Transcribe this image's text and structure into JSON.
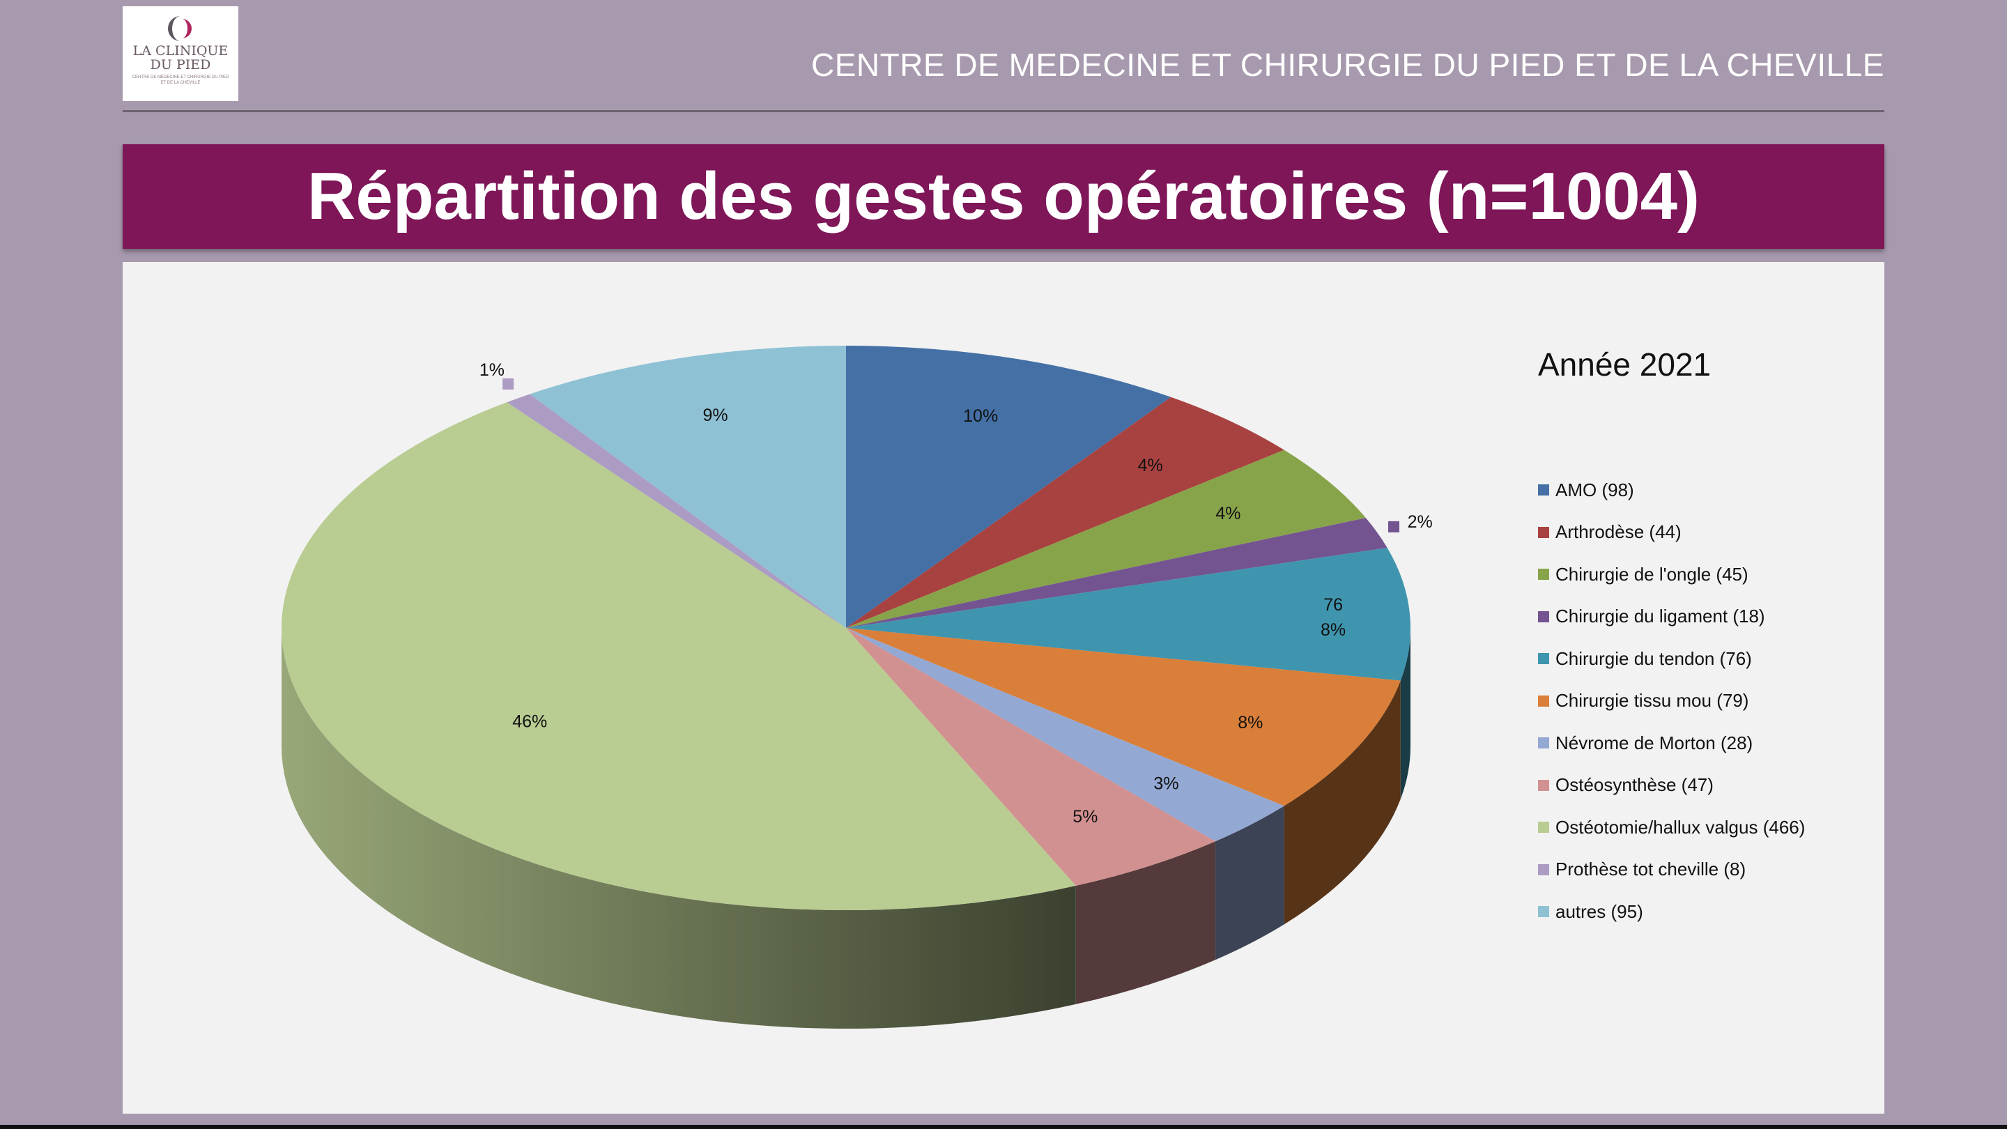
{
  "header": {
    "logo_line1": "LA CLINIQUE",
    "logo_line2": "DU PIED",
    "logo_sub": "CENTRE DE MÉDECINE ET CHIRURGIE DU PIED ET DE LA CHEVILLE",
    "title": "CENTRE DE MEDECINE ET CHIRURGIE DU PIED ET DE LA CHEVILLE"
  },
  "slide_title": "Répartition des gestes opératoires (n=1004)",
  "chart_data": {
    "type": "pie",
    "title": "Année 2021",
    "total": 1004,
    "slices": [
      {
        "name": "AMO",
        "legend": "AMO (98)",
        "value": 98,
        "label": "10%",
        "color": "#4470a6"
      },
      {
        "name": "Arthrodèse",
        "legend": "Arthrodèse (44)",
        "value": 44,
        "label": "4%",
        "color": "#a84240"
      },
      {
        "name": "Chirurgie de l'ongle",
        "legend": "Chirurgie de l'ongle (45)",
        "value": 45,
        "label": "4%",
        "color": "#88a44a"
      },
      {
        "name": "Chirurgie du ligament",
        "legend": "Chirurgie du ligament (18)",
        "value": 18,
        "label": "2%",
        "color": "#735490"
      },
      {
        "name": "Chirurgie du tendon",
        "legend": "Chirurgie du tendon (76)",
        "value": 76,
        "label": "76",
        "label2": "8%",
        "color": "#3f95ae"
      },
      {
        "name": "Chirurgie tissu mou",
        "legend": "Chirurgie tissu mou (79)",
        "value": 79,
        "label": "8%",
        "color": "#da7f39"
      },
      {
        "name": "Névrome de Morton",
        "legend": "Névrome de Morton (28)",
        "value": 28,
        "label": "3%",
        "color": "#93a8d2"
      },
      {
        "name": "Ostéosynthèse",
        "legend": "Ostéosynthèse (47)",
        "value": 47,
        "label": "5%",
        "color": "#d29191"
      },
      {
        "name": "Ostéotomie/hallux valgus",
        "legend": "Ostéotomie/hallux valgus (466)",
        "value": 466,
        "label": "46%",
        "color": "#b9cc92"
      },
      {
        "name": "Prothèse tot cheville",
        "legend": "Prothèse tot cheville (8)",
        "value": 8,
        "label": "1%",
        "color": "#ac9cc4"
      },
      {
        "name": "autres",
        "legend": "autres (95)",
        "value": 95,
        "label": "9%",
        "color": "#8fc1d5"
      }
    ]
  }
}
